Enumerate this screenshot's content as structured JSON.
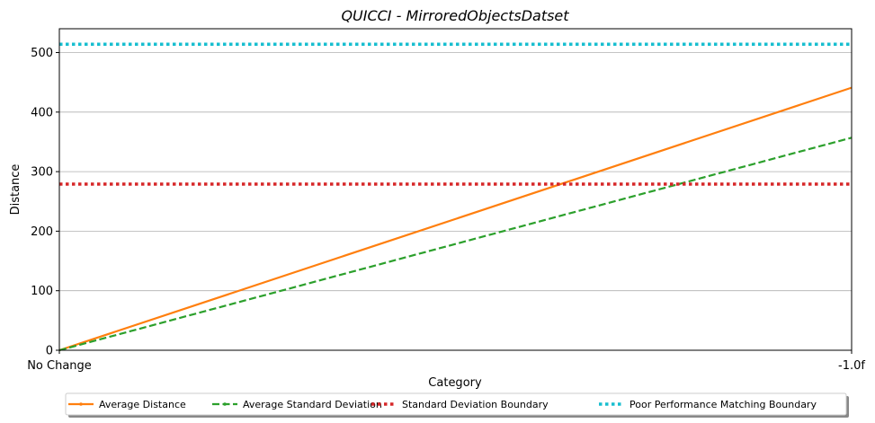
{
  "chart_data": {
    "type": "line",
    "title": "QUICCI - MirroredObjectsDatset",
    "xlabel": "Category",
    "ylabel": "Distance",
    "categories": [
      "No Change",
      "-1.0f"
    ],
    "ylim": [
      0,
      540
    ],
    "yticks": [
      0,
      100,
      200,
      300,
      400,
      500
    ],
    "grid": "horizontal",
    "legend_placement": "bottom",
    "series": [
      {
        "name": "Average Distance",
        "values": [
          0,
          441
        ],
        "color": "#ff7f0e",
        "style": "solid"
      },
      {
        "name": "Average Standard Deviation",
        "values": [
          0,
          357
        ],
        "color": "#2ca02c",
        "style": "dashed"
      },
      {
        "name": "Standard Deviation Boundary",
        "values": [
          279,
          279
        ],
        "color": "#d62728",
        "style": "dotted"
      },
      {
        "name": "Poor Performance Matching Boundary",
        "values": [
          514,
          514
        ],
        "color": "#17becf",
        "style": "dotted"
      }
    ]
  }
}
